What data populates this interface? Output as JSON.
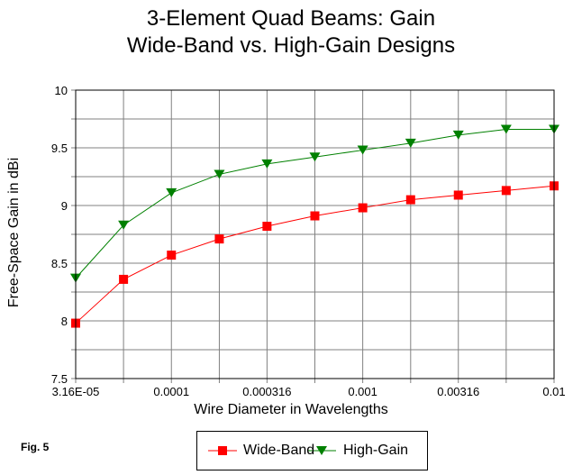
{
  "chart_data": {
    "type": "line",
    "title_line1": "3-Element Quad Beams:  Gain",
    "title_line2": "Wide-Band vs. High-Gain Designs",
    "xlabel": "Wire Diameter in Wavelengths",
    "ylabel": "Free-Space Gain in dBi",
    "x_scale": "log",
    "x": [
      3.16e-05,
      5.62e-05,
      0.0001,
      0.000178,
      0.000316,
      0.000562,
      0.001,
      0.00178,
      0.00316,
      0.00562,
      0.01
    ],
    "x_tick_labels": [
      "3.16E-05",
      "0.0001",
      "0.000316",
      "0.001",
      "0.00316",
      "0.01"
    ],
    "y_tick_labels": [
      "7.5",
      "8",
      "8.5",
      "9",
      "9.5",
      "10"
    ],
    "ylim": [
      7.5,
      10
    ],
    "grid": true,
    "legend_position": "bottom",
    "series": [
      {
        "name": "Wide-Band",
        "color": "#ff0000",
        "marker": "square",
        "values": [
          7.98,
          8.36,
          8.57,
          8.71,
          8.82,
          8.91,
          8.98,
          9.05,
          9.09,
          9.13,
          9.17
        ]
      },
      {
        "name": "High-Gain",
        "color": "#008000",
        "marker": "triangle-down",
        "values": [
          8.37,
          8.83,
          9.11,
          9.27,
          9.36,
          9.42,
          9.48,
          9.54,
          9.61,
          9.66,
          9.66
        ]
      }
    ]
  },
  "figure_label": "Fig. 5"
}
